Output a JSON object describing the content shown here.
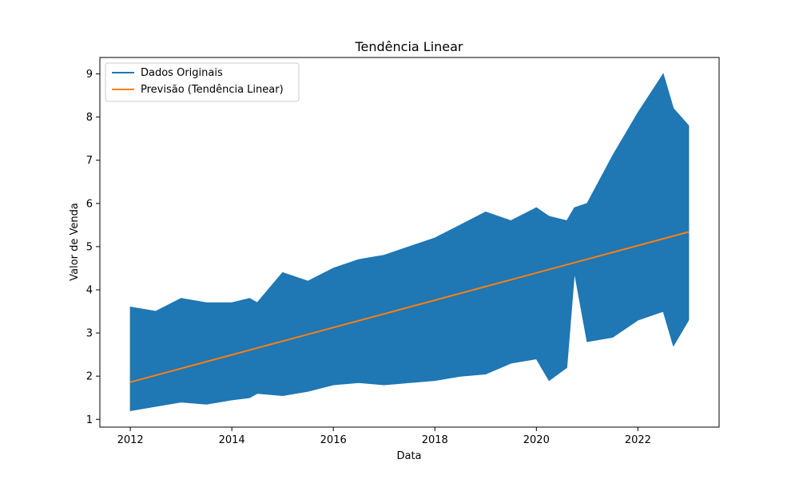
{
  "chart_data": {
    "type": "line",
    "title": "Tendência Linear",
    "xlabel": "Data",
    "ylabel": "Valor de Venda",
    "xlim": [
      2011.4,
      2023.6
    ],
    "ylim": [
      0.82,
      9.38
    ],
    "x_ticks": [
      {
        "value": 2012,
        "label": "2012"
      },
      {
        "value": 2014,
        "label": "2014"
      },
      {
        "value": 2016,
        "label": "2016"
      },
      {
        "value": 2018,
        "label": "2018"
      },
      {
        "value": 2020,
        "label": "2020"
      },
      {
        "value": 2022,
        "label": "2022"
      }
    ],
    "y_ticks": [
      {
        "value": 1,
        "label": "1"
      },
      {
        "value": 2,
        "label": "2"
      },
      {
        "value": 3,
        "label": "3"
      },
      {
        "value": 4,
        "label": "4"
      },
      {
        "value": 5,
        "label": "5"
      },
      {
        "value": 6,
        "label": "6"
      },
      {
        "value": 7,
        "label": "7"
      },
      {
        "value": 8,
        "label": "8"
      },
      {
        "value": 9,
        "label": "9"
      }
    ],
    "grid": false,
    "legend_position": "top-left",
    "series": [
      {
        "name": "Dados Originais",
        "color": "#1f77b4",
        "envelope": {
          "x": [
            2012.0,
            2012.5,
            2013.0,
            2013.5,
            2014.0,
            2014.35,
            2014.5,
            2015.0,
            2015.5,
            2016.0,
            2016.5,
            2017.0,
            2017.5,
            2018.0,
            2018.5,
            2019.0,
            2019.5,
            2020.0,
            2020.25,
            2020.6,
            2020.75,
            2021.0,
            2021.5,
            2022.0,
            2022.5,
            2022.7,
            2023.0
          ],
          "low": [
            1.2,
            1.3,
            1.4,
            1.35,
            1.45,
            1.5,
            1.6,
            1.55,
            1.65,
            1.8,
            1.85,
            1.8,
            1.85,
            1.9,
            2.0,
            2.05,
            2.3,
            2.4,
            1.9,
            2.2,
            4.4,
            2.8,
            2.9,
            3.3,
            3.5,
            2.7,
            3.3
          ],
          "high": [
            3.6,
            3.5,
            3.8,
            3.7,
            3.7,
            3.8,
            3.7,
            4.4,
            4.2,
            4.5,
            4.7,
            4.8,
            5.0,
            5.2,
            5.5,
            5.8,
            5.6,
            5.9,
            5.7,
            5.6,
            5.9,
            6.0,
            7.1,
            8.1,
            9.0,
            8.2,
            7.8
          ]
        }
      },
      {
        "name": "Previsão (Tendência Linear)",
        "color": "#ff7f0e",
        "x": [
          2012.0,
          2023.0
        ],
        "y": [
          1.86,
          5.34
        ]
      }
    ]
  }
}
